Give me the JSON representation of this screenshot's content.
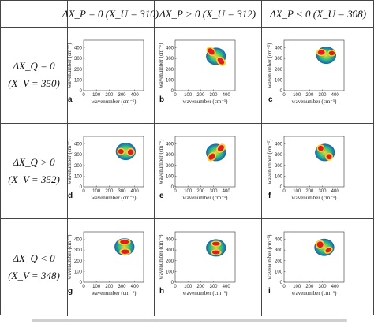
{
  "table": {
    "columns": [
      {
        "text": "ΔX_P = 0 (X_U = 310)"
      },
      {
        "text": "ΔX_P > 0 (X_U = 312)"
      },
      {
        "text": "ΔX_P < 0 (X_U = 308)"
      }
    ],
    "rows": [
      {
        "line1": "ΔX_Q = 0",
        "line2": "(X_V = 350)"
      },
      {
        "line1": "ΔX_Q > 0",
        "line2": "(X_V = 352)"
      },
      {
        "line1": "ΔX_Q < 0",
        "line2": "(X_V = 348)"
      }
    ]
  },
  "chart_data": {
    "type": "heatmap",
    "xlabel": "wavenumber (cm⁻¹)",
    "ylabel": "wavenumber (cm⁻¹)",
    "xlim": [
      0,
      470
    ],
    "ylim": [
      0,
      470
    ],
    "xticks": [
      "0",
      "100",
      "200",
      "300",
      "400"
    ],
    "yticks": [
      "0",
      "100",
      "200",
      "300",
      "400"
    ],
    "colors": {
      "low": "#1a5fb4",
      "mid": "#2ec27e",
      "high": "#f6d32d",
      "peak": "#e01b24"
    },
    "panels": [
      {
        "label": "a",
        "spots": []
      },
      {
        "label": "b",
        "spots": [
          {
            "x": 320,
            "y": 320,
            "pattern": "diag-down"
          }
        ]
      },
      {
        "label": "c",
        "spots": [
          {
            "x": 330,
            "y": 330,
            "pattern": "split-top"
          }
        ]
      },
      {
        "label": "d",
        "spots": [
          {
            "x": 330,
            "y": 330,
            "pattern": "split-left"
          }
        ]
      },
      {
        "label": "e",
        "spots": [
          {
            "x": 320,
            "y": 320,
            "pattern": "diag-up"
          }
        ]
      },
      {
        "label": "f",
        "spots": [
          {
            "x": 320,
            "y": 320,
            "pattern": "cross"
          }
        ]
      },
      {
        "label": "g",
        "spots": [
          {
            "x": 320,
            "y": 330,
            "pattern": "top-bottom"
          }
        ]
      },
      {
        "label": "h",
        "spots": [
          {
            "x": 320,
            "y": 320,
            "pattern": "x-shape"
          }
        ]
      },
      {
        "label": "i",
        "spots": [
          {
            "x": 315,
            "y": 325,
            "pattern": "l-shape"
          }
        ]
      }
    ]
  }
}
